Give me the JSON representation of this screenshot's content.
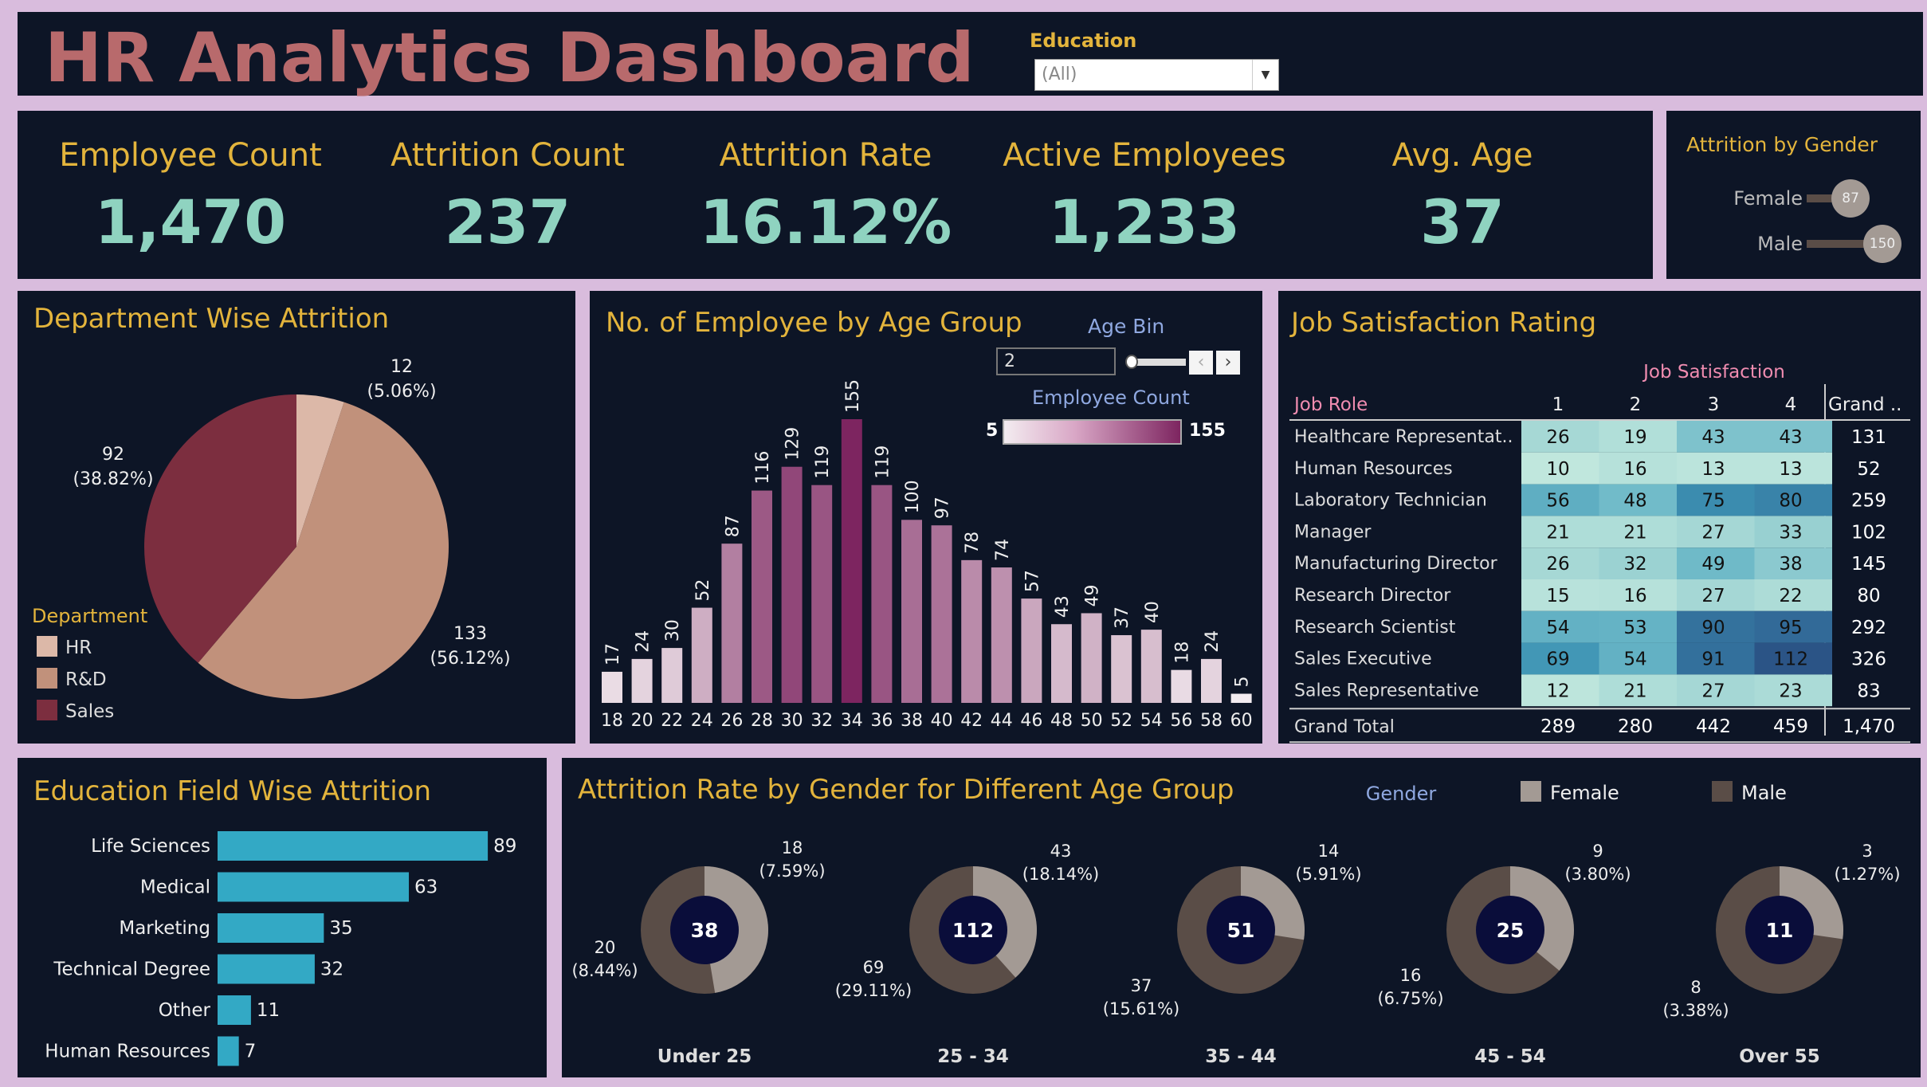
{
  "header": {
    "title": "HR Analytics Dashboard",
    "filter_label": "Education",
    "filter_value": "(All)",
    "title_color": "#b86a6c"
  },
  "kpis": [
    {
      "label": "Employee Count",
      "value": "1,470"
    },
    {
      "label": "Attrition Count",
      "value": "237"
    },
    {
      "label": "Attrition Rate",
      "value": "16.12%"
    },
    {
      "label": "Active Employees",
      "value": "1,233"
    },
    {
      "label": "Avg. Age",
      "value": "37"
    }
  ],
  "gender_panel": {
    "title": "Attrition by Gender",
    "items": [
      {
        "label": "Female",
        "value": 87
      },
      {
        "label": "Male",
        "value": 150
      }
    ]
  },
  "chart_data": [
    {
      "type": "pie",
      "title": "Department Wise Attrition",
      "legend_title": "Department",
      "legend_position": "bottom-left",
      "slices": [
        {
          "name": "HR",
          "value": 12,
          "pct": "5.06%",
          "color": "#dcb8a8"
        },
        {
          "name": "R&D",
          "value": 133,
          "pct": "56.12%",
          "color": "#c1917b"
        },
        {
          "name": "Sales",
          "value": 92,
          "pct": "38.82%",
          "color": "#7c2e3f"
        }
      ]
    },
    {
      "type": "bar",
      "title": "No. of Employee by Age Group",
      "categories": [
        "18",
        "20",
        "22",
        "24",
        "26",
        "28",
        "30",
        "32",
        "34",
        "36",
        "38",
        "40",
        "42",
        "44",
        "46",
        "48",
        "50",
        "52",
        "54",
        "56",
        "58",
        "60"
      ],
      "values": [
        17,
        24,
        30,
        52,
        87,
        116,
        129,
        119,
        155,
        119,
        100,
        97,
        78,
        74,
        57,
        43,
        49,
        37,
        40,
        18,
        24,
        5
      ],
      "color_legend": {
        "title": "Employee Count",
        "min": 5,
        "max": 155,
        "min_label": "5",
        "max_label": "155",
        "min_color": "#f3ecf0",
        "max_color": "#7d2560"
      },
      "parameter": {
        "label": "Age Bin",
        "value": "2"
      }
    },
    {
      "type": "heatmap",
      "title": "Job Satisfaction Rating",
      "column_title": "Job Satisfaction",
      "row_header": "Job Role",
      "columns": [
        "1",
        "2",
        "3",
        "4"
      ],
      "total_header": "Grand ..",
      "rows": [
        {
          "role": "Healthcare Representat..",
          "values": [
            26,
            19,
            43,
            43
          ],
          "total": "131"
        },
        {
          "role": "Human Resources",
          "values": [
            10,
            16,
            13,
            13
          ],
          "total": "52"
        },
        {
          "role": "Laboratory Technician",
          "values": [
            56,
            48,
            75,
            80
          ],
          "total": "259"
        },
        {
          "role": "Manager",
          "values": [
            21,
            21,
            27,
            33
          ],
          "total": "102"
        },
        {
          "role": "Manufacturing Director",
          "values": [
            26,
            32,
            49,
            38
          ],
          "total": "145"
        },
        {
          "role": "Research Director",
          "values": [
            15,
            16,
            27,
            22
          ],
          "total": "80"
        },
        {
          "role": "Research Scientist",
          "values": [
            54,
            53,
            90,
            95
          ],
          "total": "292"
        },
        {
          "role": "Sales Executive",
          "values": [
            69,
            54,
            91,
            112
          ],
          "total": "326"
        },
        {
          "role": "Sales Representative",
          "values": [
            12,
            21,
            27,
            23
          ],
          "total": "83"
        }
      ],
      "grand_total": {
        "label": "Grand Total",
        "values": [
          "289",
          "280",
          "442",
          "459"
        ],
        "total": "1,470"
      }
    },
    {
      "type": "bar",
      "orientation": "horizontal",
      "title": "Education Field Wise Attrition",
      "color": "#33a9c5",
      "categories": [
        "Life Sciences",
        "Medical",
        "Marketing",
        "Technical Degree",
        "Other",
        "Human Resources"
      ],
      "values": [
        89,
        63,
        35,
        32,
        11,
        7
      ]
    },
    {
      "type": "pie",
      "subtype": "donut",
      "title": "Attrition Rate by Gender for Different Age Group",
      "legend": {
        "title": "Gender",
        "items": [
          {
            "name": "Female",
            "color": "#a39a94"
          },
          {
            "name": "Male",
            "color": "#5a4d47"
          }
        ]
      },
      "groups": [
        {
          "name": "Under 25",
          "total": "38",
          "female": 18,
          "female_pct": "7.59%",
          "male": 20,
          "male_pct": "8.44%"
        },
        {
          "name": "25 - 34",
          "total": "112",
          "female": 43,
          "female_pct": "18.14%",
          "male": 69,
          "male_pct": "29.11%"
        },
        {
          "name": "35 - 44",
          "total": "51",
          "female": 14,
          "female_pct": "5.91%",
          "male": 37,
          "male_pct": "15.61%"
        },
        {
          "name": "45 - 54",
          "total": "25",
          "female": 9,
          "female_pct": "3.80%",
          "male": 16,
          "male_pct": "6.75%"
        },
        {
          "name": "Over 55",
          "total": "11",
          "female": 3,
          "female_pct": "1.27%",
          "male": 8,
          "male_pct": "3.38%"
        }
      ]
    }
  ]
}
